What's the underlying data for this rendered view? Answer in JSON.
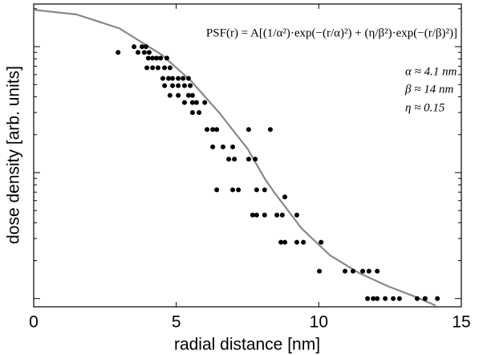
{
  "chart_data": {
    "type": "scatter",
    "x_label": "radial distance [nm]",
    "y_label": "dose density [arb. units]",
    "xlim": [
      0,
      15
    ],
    "xticks": [
      0,
      5,
      10,
      15
    ],
    "ylim": [
      0.86,
      218
    ],
    "y_log": true,
    "yticks": [
      1,
      2,
      3,
      4,
      5,
      6,
      7,
      8,
      9,
      10,
      20,
      30,
      40,
      50,
      60,
      70,
      80,
      90,
      100,
      200
    ],
    "annotations": [
      "PSF(r) = A[(1/α²)·exp(−(r/α)²) + (η/β²)·exp(−(r/β)²)]",
      "α ≈ 4.1 nm",
      "β ≈ 14 nm",
      "η ≈ 0.15"
    ],
    "points": {
      "color": "#000000",
      "x": [
        2.96,
        3.66,
        3.88,
        4.05,
        3.52,
        3.8,
        3.94,
        4.02,
        4.17,
        4.31,
        4.45,
        4.67,
        3.97,
        4.17,
        4.36,
        4.59,
        4.78,
        4.53,
        4.73,
        4.87,
        5.07,
        5.24,
        5.43,
        4.59,
        4.87,
        5.07,
        5.29,
        5.49,
        4.78,
        5.07,
        5.43,
        5.57,
        5.29,
        5.57,
        5.71,
        6.0,
        5.57,
        5.8,
        6.08,
        6.28,
        6.42,
        7.54,
        8.3,
        6.28,
        6.64,
        6.98,
        6.84,
        7.04,
        7.54,
        7.77,
        6.42,
        6.98,
        7.18,
        7.82,
        8.1,
        8.81,
        7.68,
        7.82,
        8.1,
        8.53,
        8.72,
        9.23,
        8.67,
        8.81,
        9.23,
        9.46,
        10.08,
        10.02,
        10.92,
        11.2,
        11.54,
        11.76,
        12.05,
        11.71,
        11.91,
        12.05,
        12.33,
        12.61,
        12.83,
        13.45,
        13.73,
        14.16
      ],
      "y": [
        90,
        90,
        90,
        90,
        100,
        100,
        100,
        81,
        81,
        81,
        81,
        81,
        68,
        68,
        68,
        68,
        68,
        56,
        56,
        56,
        56,
        56,
        56,
        49,
        49,
        49,
        49,
        49,
        41,
        41,
        41,
        41,
        36,
        36,
        36,
        36,
        30,
        30,
        22,
        22,
        22,
        22,
        22,
        16,
        16,
        16,
        12.8,
        12.8,
        12.8,
        12.8,
        7.3,
        7.3,
        7.3,
        7.3,
        7.3,
        6.4,
        4.6,
        4.6,
        4.6,
        4.6,
        4.6,
        4.6,
        2.8,
        2.8,
        2.8,
        2.8,
        2.8,
        1.65,
        1.65,
        1.65,
        1.65,
        1.65,
        1.65,
        1,
        1,
        1,
        1,
        1,
        1,
        1,
        1,
        1
      ]
    },
    "fit": {
      "color": "#888888",
      "x": [
        0,
        1.5,
        3,
        4.5,
        5.5,
        6.5,
        7.5,
        8.1,
        8.45,
        9.4,
        10.4,
        11.4,
        12.4,
        13.4,
        14.1
      ],
      "y": [
        196,
        180,
        140,
        86,
        54,
        30,
        15.5,
        9.0,
        6.9,
        3.6,
        2.2,
        1.6,
        1.26,
        1.03,
        0.88
      ]
    }
  }
}
